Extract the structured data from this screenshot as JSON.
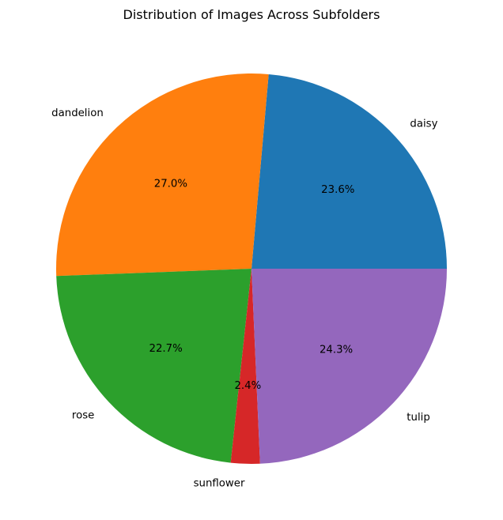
{
  "chart_data": {
    "type": "pie",
    "title": "Distribution of Images Across Subfolders",
    "start_angle_deg": 0,
    "direction": "counterclockwise",
    "slices": [
      {
        "label": "daisy",
        "value": 23.6,
        "pct_label": "23.6%",
        "color": "#1f77b4"
      },
      {
        "label": "dandelion",
        "value": 27.0,
        "pct_label": "27.0%",
        "color": "#ff7f0e"
      },
      {
        "label": "rose",
        "value": 22.7,
        "pct_label": "22.7%",
        "color": "#2ca02c"
      },
      {
        "label": "sunflower",
        "value": 2.4,
        "pct_label": "2.4%",
        "color": "#d62728"
      },
      {
        "label": "tulip",
        "value": 24.3,
        "pct_label": "24.3%",
        "color": "#9467bd"
      }
    ]
  }
}
